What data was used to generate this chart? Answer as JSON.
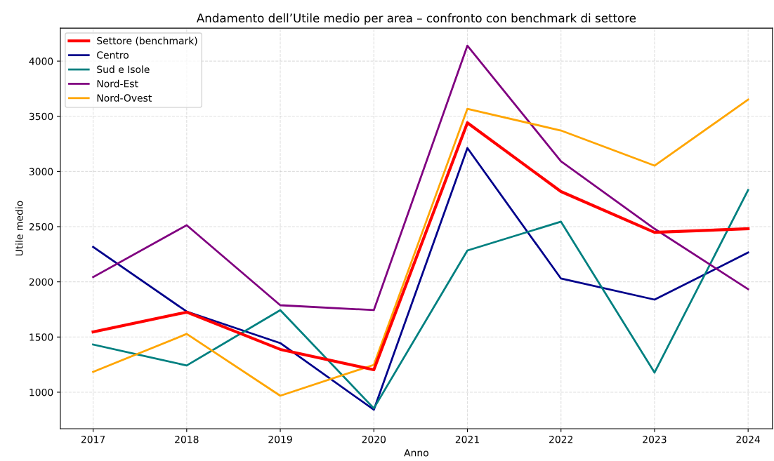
{
  "chart_data": {
    "type": "line",
    "title": "Andamento dell’Utile medio per area – confronto con benchmark di settore",
    "xlabel": "Anno",
    "ylabel": "Utile medio",
    "x": [
      2017,
      2018,
      2019,
      2020,
      2021,
      2022,
      2023,
      2024
    ],
    "series": [
      {
        "name": "Settore (benchmark)",
        "color": "#ff0000",
        "values": [
          1547,
          1725,
          1388,
          1203,
          3441,
          2818,
          2449,
          2481
        ]
      },
      {
        "name": "Centro",
        "color": "#00008b",
        "values": [
          2316,
          1731,
          1445,
          841,
          3212,
          2030,
          1839,
          2265
        ]
      },
      {
        "name": "Sud e Isole",
        "color": "#008080",
        "values": [
          1432,
          1242,
          1744,
          854,
          2284,
          2545,
          1178,
          2831
        ]
      },
      {
        "name": "Nord-Est",
        "color": "#800080",
        "values": [
          2043,
          2513,
          1788,
          1744,
          4140,
          3092,
          2481,
          1934
        ]
      },
      {
        "name": "Nord-Ovest",
        "color": "#ffa500",
        "values": [
          1184,
          1528,
          968,
          1248,
          3568,
          3371,
          3053,
          3651
        ]
      }
    ],
    "xlim": [
      2016.65,
      2024.26
    ],
    "ylim": [
      669,
      4299
    ],
    "xticks": [
      2017,
      2018,
      2019,
      2020,
      2021,
      2022,
      2023,
      2024
    ],
    "yticks": [
      1000,
      1500,
      2000,
      2500,
      3000,
      3500,
      4000
    ],
    "grid": true,
    "legend": "top left",
    "line_style": "solid",
    "marker": "none"
  }
}
